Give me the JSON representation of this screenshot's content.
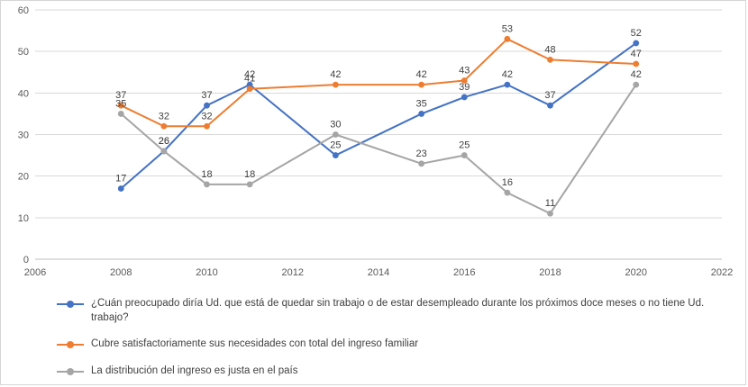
{
  "chart_data": {
    "type": "line",
    "x": [
      2008,
      2009,
      2010,
      2011,
      2013,
      2015,
      2016,
      2017,
      2018,
      2020
    ],
    "series": [
      {
        "name": "¿Cuán preocupado diría Ud. que está de quedar sin trabajo o de estar desempleado durante los próximos doce meses o no tiene Ud. trabajo?",
        "color": "#4472C4",
        "values": [
          17,
          26,
          37,
          42,
          25,
          35,
          39,
          42,
          37,
          52
        ]
      },
      {
        "name": "Cubre satisfactoriamente sus necesidades con total del ingreso familiar",
        "color": "#ED7D31",
        "values": [
          37,
          32,
          32,
          41,
          42,
          42,
          43,
          53,
          48,
          47
        ]
      },
      {
        "name": "La distribución del ingreso es justa en el país",
        "color": "#A5A5A5",
        "values": [
          35,
          26,
          18,
          18,
          30,
          23,
          25,
          16,
          11,
          42
        ]
      }
    ],
    "title": "",
    "xlabel": "",
    "ylabel": "",
    "xlim": [
      2006,
      2022
    ],
    "ylim": [
      0,
      60
    ],
    "x_ticks": [
      2006,
      2008,
      2010,
      2012,
      2014,
      2016,
      2018,
      2020,
      2022
    ],
    "y_ticks": [
      0,
      10,
      20,
      30,
      40,
      50,
      60
    ],
    "grid": true,
    "legend_position": "bottom",
    "data_labels": true
  },
  "colors": {
    "gridline": "#d9d9d9",
    "axis_line": "#bfbfbf",
    "axis_text": "#595959",
    "label_text": "#404040",
    "frame_border": "#d6d6d6"
  }
}
